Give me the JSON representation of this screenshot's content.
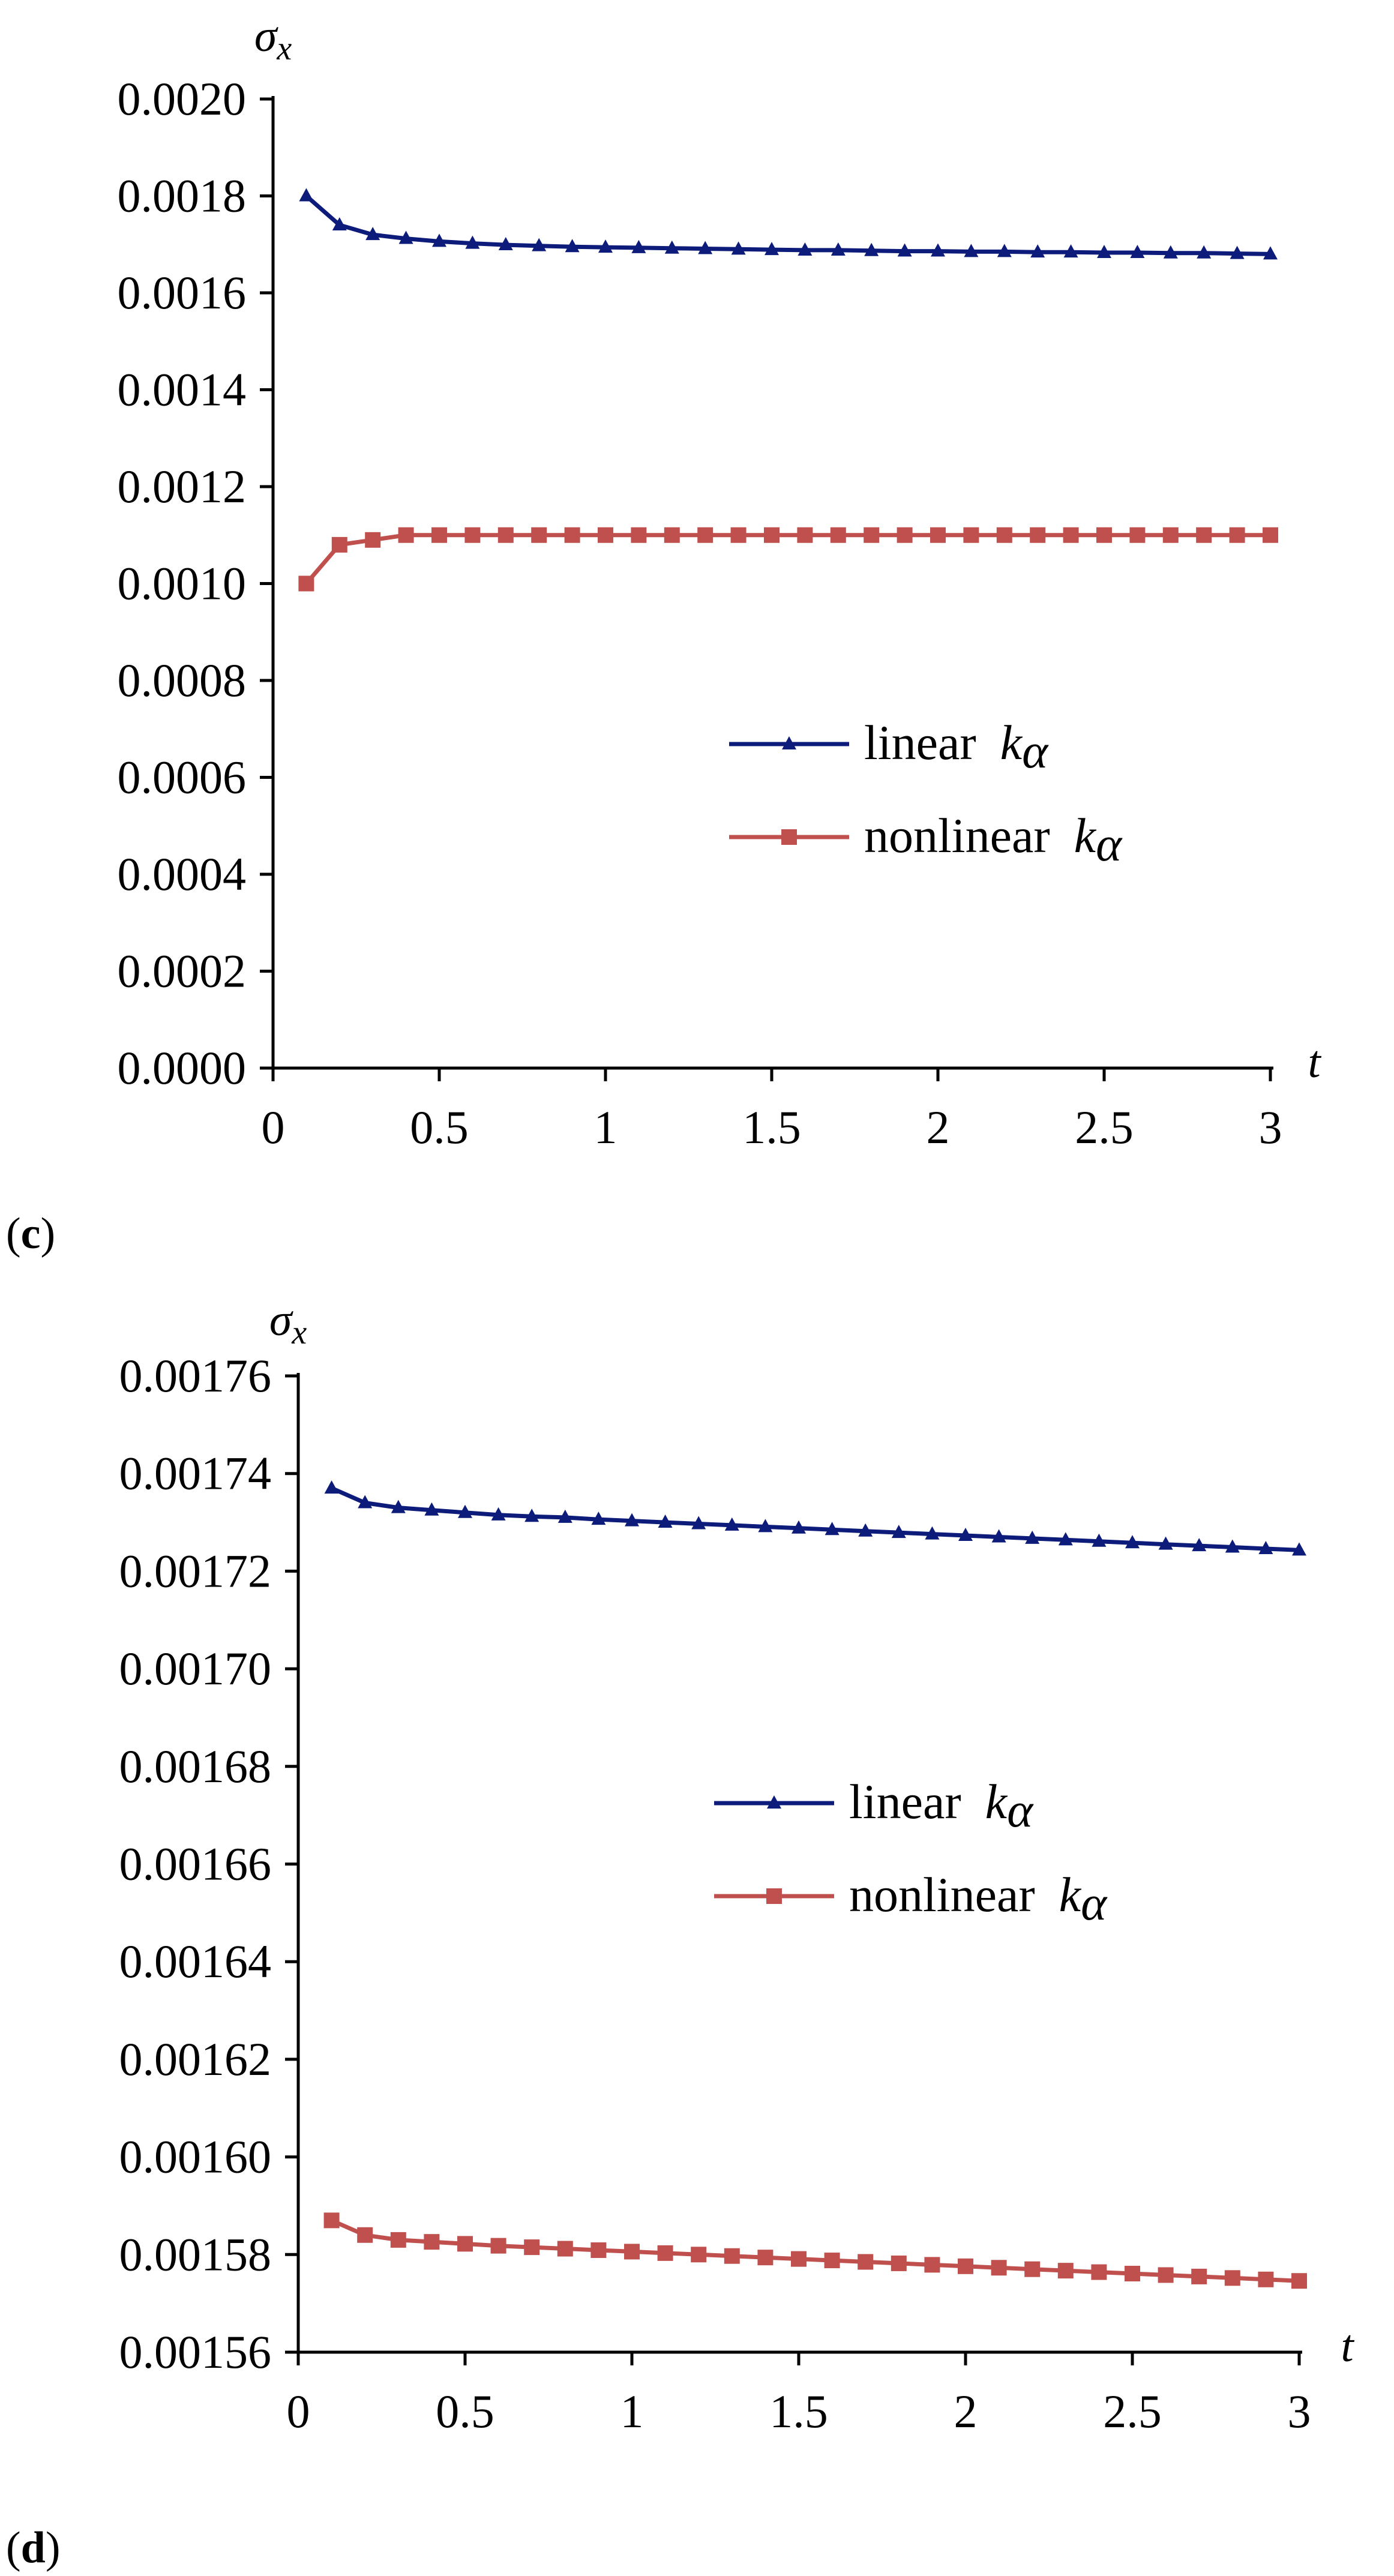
{
  "chart_data": [
    {
      "type": "line",
      "panel_label": "c",
      "ylabel": "σx",
      "ylabel_main": "σ",
      "ylabel_sub": "x",
      "xlabel": "t",
      "xlim": [
        0,
        3
      ],
      "ylim": [
        0,
        0.002
      ],
      "xticks": [
        0,
        0.5,
        1,
        1.5,
        2,
        2.5,
        3
      ],
      "xtick_labels": [
        "0",
        "0.5",
        "1",
        "1.5",
        "2",
        "2.5",
        "3"
      ],
      "yticks": [
        0,
        0.0002,
        0.0004,
        0.0006,
        0.0008,
        0.001,
        0.0012,
        0.0014,
        0.0016,
        0.0018,
        0.002
      ],
      "ytick_labels": [
        "0.0000",
        "0.0002",
        "0.0004",
        "0.0006",
        "0.0008",
        "0.0010",
        "0.0012",
        "0.0014",
        "0.0016",
        "0.0018",
        "0.0020"
      ],
      "grid": false,
      "legend_position": "center-right",
      "x": [
        0.1,
        0.2,
        0.3,
        0.4,
        0.5,
        0.6,
        0.7,
        0.8,
        0.9,
        1.0,
        1.1,
        1.2,
        1.3,
        1.4,
        1.5,
        1.6,
        1.7,
        1.8,
        1.9,
        2.0,
        2.1,
        2.2,
        2.3,
        2.4,
        2.5,
        2.6,
        2.7,
        2.8,
        2.9,
        3.0
      ],
      "series": [
        {
          "name": "linear kα",
          "name_text": "linear",
          "name_sym": "k",
          "name_sub": "α",
          "color": "#0d1b7a",
          "marker": "triangle",
          "values": [
            0.0018,
            0.00174,
            0.00172,
            0.001712,
            0.001706,
            0.001702,
            0.001699,
            0.001697,
            0.001695,
            0.001694,
            0.001693,
            0.001692,
            0.001691,
            0.00169,
            0.001689,
            0.001688,
            0.001688,
            0.001687,
            0.001686,
            0.001686,
            0.001685,
            0.001685,
            0.001684,
            0.001684,
            0.001683,
            0.001683,
            0.001682,
            0.001682,
            0.001681,
            0.00168
          ]
        },
        {
          "name": "nonlinear kα",
          "name_text": "nonlinear",
          "name_sym": "k",
          "name_sub": "α",
          "color": "#c0504d",
          "marker": "square",
          "values": [
            0.001,
            0.00108,
            0.00109,
            0.0011,
            0.0011,
            0.0011,
            0.0011,
            0.0011,
            0.0011,
            0.0011,
            0.0011,
            0.0011,
            0.0011,
            0.0011,
            0.0011,
            0.0011,
            0.0011,
            0.0011,
            0.0011,
            0.0011,
            0.0011,
            0.0011,
            0.0011,
            0.0011,
            0.0011,
            0.0011,
            0.0011,
            0.0011,
            0.0011,
            0.0011
          ]
        }
      ]
    },
    {
      "type": "line",
      "panel_label": "d",
      "ylabel": "σx",
      "ylabel_main": "σ",
      "ylabel_sub": "x",
      "xlabel": "t",
      "xlim": [
        0,
        3
      ],
      "ylim": [
        0.00156,
        0.00176
      ],
      "xticks": [
        0,
        0.5,
        1,
        1.5,
        2,
        2.5,
        3
      ],
      "xtick_labels": [
        "0",
        "0.5",
        "1",
        "1.5",
        "2",
        "2.5",
        "3"
      ],
      "yticks": [
        0.00156,
        0.00158,
        0.0016,
        0.00162,
        0.00164,
        0.00166,
        0.00168,
        0.0017,
        0.00172,
        0.00174,
        0.00176
      ],
      "ytick_labels": [
        "0.00156",
        "0.00158",
        "0.00160",
        "0.00162",
        "0.00164",
        "0.00166",
        "0.00168",
        "0.00170",
        "0.00172",
        "0.00174",
        "0.00176"
      ],
      "grid": false,
      "legend_position": "center-right",
      "x": [
        0.1,
        0.2,
        0.3,
        0.4,
        0.5,
        0.6,
        0.7,
        0.8,
        0.9,
        1.0,
        1.1,
        1.2,
        1.3,
        1.4,
        1.5,
        1.6,
        1.7,
        1.8,
        1.9,
        2.0,
        2.1,
        2.2,
        2.3,
        2.4,
        2.5,
        2.6,
        2.7,
        2.8,
        2.9,
        3.0
      ],
      "series": [
        {
          "name": "linear kα",
          "name_text": "linear",
          "name_sym": "k",
          "name_sub": "α",
          "color": "#0d1b7a",
          "marker": "triangle",
          "values": [
            0.001737,
            0.001734,
            0.001733,
            0.0017325,
            0.001732,
            0.0017315,
            0.0017312,
            0.001731,
            0.0017306,
            0.0017303,
            0.00173,
            0.0017297,
            0.0017294,
            0.0017291,
            0.0017288,
            0.0017285,
            0.0017282,
            0.0017279,
            0.0017276,
            0.0017273,
            0.001727,
            0.0017267,
            0.0017264,
            0.0017261,
            0.0017258,
            0.0017255,
            0.0017252,
            0.0017249,
            0.0017246,
            0.0017243
          ]
        },
        {
          "name": "nonlinear kα",
          "name_text": "nonlinear",
          "name_sym": "k",
          "name_sub": "α",
          "color": "#c0504d",
          "marker": "square",
          "values": [
            0.001587,
            0.001584,
            0.001583,
            0.0015826,
            0.0015822,
            0.0015818,
            0.0015815,
            0.0015812,
            0.0015809,
            0.0015806,
            0.0015803,
            0.00158,
            0.0015797,
            0.0015794,
            0.0015791,
            0.0015788,
            0.0015785,
            0.0015782,
            0.0015779,
            0.0015776,
            0.0015773,
            0.001577,
            0.0015767,
            0.0015764,
            0.0015761,
            0.0015758,
            0.0015755,
            0.0015752,
            0.0015749,
            0.0015746
          ]
        }
      ]
    }
  ]
}
